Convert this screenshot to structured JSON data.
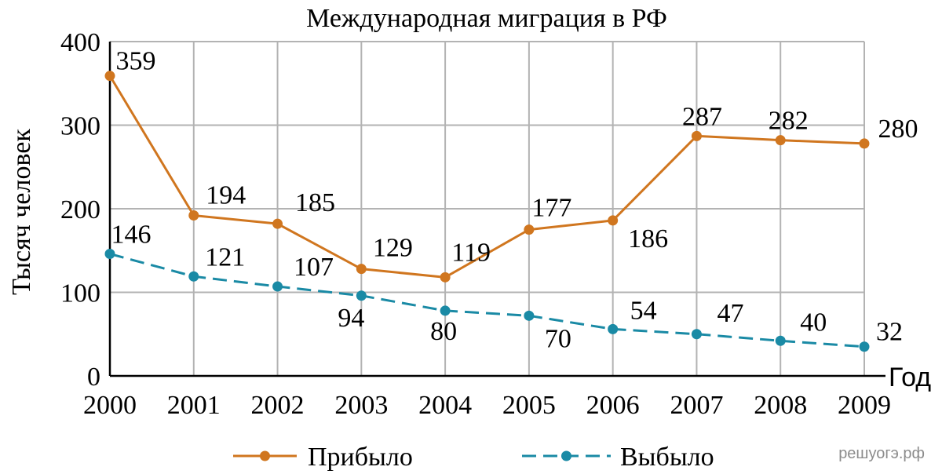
{
  "chart_data": {
    "type": "line",
    "title": "Международная миграция в РФ",
    "xlabel": "Год",
    "ylabel": "Тысяч человек",
    "x": [
      "2000",
      "2001",
      "2002",
      "2003",
      "2004",
      "2005",
      "2006",
      "2007",
      "2008",
      "2009"
    ],
    "ylim": [
      0,
      400
    ],
    "yticks": [
      "0",
      "100",
      "200",
      "300",
      "400"
    ],
    "grid": true,
    "legend_position": "bottom",
    "series": [
      {
        "name": "Прибыло",
        "color": "#d0761f",
        "line_style": "solid",
        "values": [
          359,
          194,
          185,
          129,
          119,
          177,
          186,
          287,
          282,
          280
        ],
        "values_plotted": [
          359,
          192,
          182,
          128,
          118,
          175,
          186,
          287,
          282,
          278
        ]
      },
      {
        "name": "Выбыло",
        "color": "#1a8aa5",
        "line_style": "dashed",
        "values": [
          146,
          121,
          107,
          94,
          80,
          70,
          54,
          47,
          40,
          32
        ],
        "values_plotted": [
          146,
          119,
          107,
          96,
          78,
          72,
          56,
          50,
          42,
          35
        ]
      }
    ]
  },
  "watermark": "решуогэ.рф"
}
